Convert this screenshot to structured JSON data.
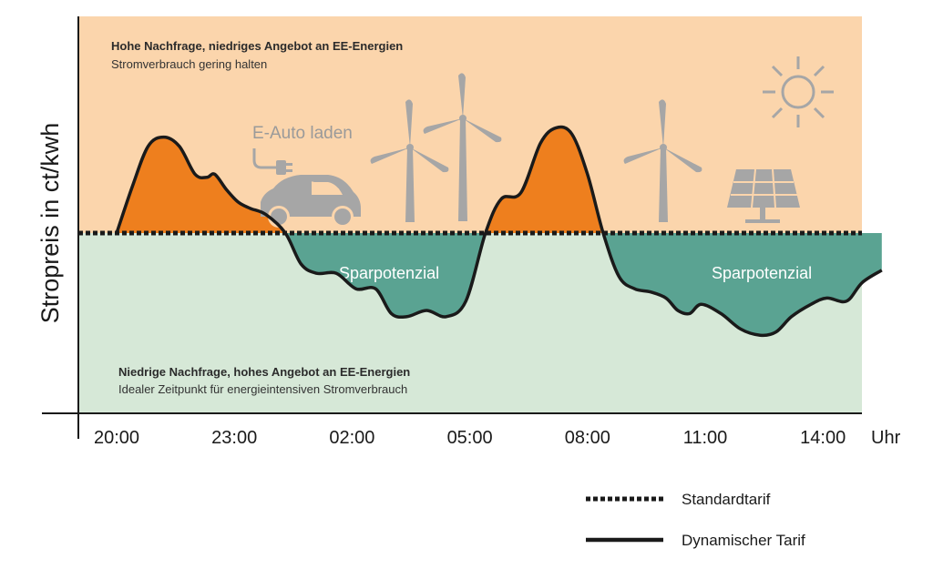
{
  "colors": {
    "high_region": "#fbd5ac",
    "low_region": "#d6e8d7",
    "above_fill": "#ee7f1e",
    "below_fill": "#5aa392",
    "line": "#1a1a1a",
    "icon": "#a6a6a6"
  },
  "regions": {
    "high": {
      "title": "Hohe Nachfrage, niedriges Angebot an EE-Energien",
      "subtitle": "Stromverbrauch gering halten"
    },
    "low": {
      "title": "Niedrige Nachfrage, hohes Angebot an EE-Energien",
      "subtitle": "Idealer Zeitpunkt für energieintensiven Stromverbrauch"
    }
  },
  "annotations": {
    "ev_charging": "E-Auto laden",
    "savings_1": "Sparpotenzial",
    "savings_2": "Sparpotenzial"
  },
  "icons": [
    "ev-plug-icon",
    "electric-car-icon",
    "wind-turbine-icon",
    "sun-icon",
    "solar-panel-icon"
  ],
  "chart_data": {
    "type": "area",
    "title": "",
    "xlabel": "",
    "ylabel": "Stropreis in ct/kwh",
    "x_unit": "Uhr",
    "x_ticks": [
      "20:00",
      "23:00",
      "02:00",
      "05:00",
      "08:00",
      "11:00",
      "14:00"
    ],
    "xlim": [
      0,
      19.5
    ],
    "ylim": [
      -5,
      6
    ],
    "baseline": 0,
    "grid": false,
    "legend_position": "bottom-right",
    "series": [
      {
        "name": "Standardtarif",
        "style": "dotted",
        "x": [
          0,
          19.5
        ],
        "y": [
          0,
          0
        ]
      },
      {
        "name": "Dynamischer Tarif",
        "style": "solid",
        "x": [
          0,
          0.4,
          0.8,
          1.2,
          1.6,
          2.0,
          2.3,
          2.5,
          2.8,
          3.1,
          3.4,
          3.8,
          4.3,
          4.7,
          5.1,
          5.6,
          6.1,
          6.6,
          7.0,
          7.4,
          7.9,
          8.4,
          8.9,
          9.4,
          9.8,
          10.3,
          10.8,
          11.2,
          11.6,
          12.0,
          12.4,
          12.8,
          13.2,
          13.6,
          14.0,
          14.3,
          14.6,
          14.9,
          15.4,
          15.9,
          16.4,
          16.8,
          17.2,
          17.7,
          18.1,
          18.6,
          19.0,
          19.5
        ],
        "y": [
          0.0,
          1.5,
          2.8,
          3.1,
          2.8,
          1.9,
          1.8,
          1.9,
          1.4,
          1.0,
          0.8,
          0.6,
          0.0,
          -1.0,
          -1.3,
          -1.3,
          -1.8,
          -1.8,
          -2.6,
          -2.7,
          -2.5,
          -2.7,
          -2.2,
          0.0,
          1.1,
          1.3,
          2.9,
          3.4,
          3.2,
          1.9,
          0.0,
          -1.4,
          -1.8,
          -1.9,
          -2.1,
          -2.5,
          -2.6,
          -2.3,
          -2.6,
          -3.1,
          -3.3,
          -3.2,
          -2.7,
          -2.3,
          -2.1,
          -2.2,
          -1.6,
          -1.2
        ]
      }
    ]
  },
  "legend": [
    {
      "label": "Standardtarif",
      "style": "dotted"
    },
    {
      "label": "Dynamischer Tarif",
      "style": "solid"
    }
  ]
}
